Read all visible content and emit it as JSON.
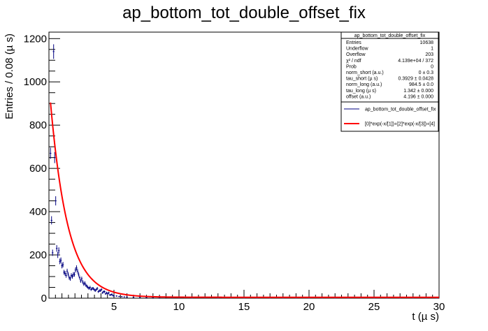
{
  "chart_data": {
    "type": "histogram-with-fit",
    "title": "ap_bottom_tot_double_offset_fix",
    "xlabel": "t (µ s)",
    "ylabel": "Entries / 0.08 (µ s)",
    "xlim": [
      0,
      30
    ],
    "ylim": [
      0,
      1230
    ],
    "xticks": [
      5,
      10,
      15,
      20,
      25,
      30
    ],
    "yticks": [
      0,
      200,
      400,
      600,
      800,
      1000,
      1200
    ],
    "series": [
      {
        "name": "ap_bottom_tot_double_offset_fix",
        "kind": "data-points",
        "color": "#000080",
        "x": [
          0.12,
          0.2,
          0.28,
          0.36,
          0.44,
          0.52,
          0.6,
          0.68,
          0.76,
          0.84,
          0.92,
          1.0,
          1.08,
          1.16,
          1.24,
          1.32,
          1.4,
          1.48,
          1.56,
          1.64,
          1.72,
          1.8,
          1.88,
          1.96,
          2.04,
          2.12,
          2.2,
          2.28,
          2.36,
          2.44,
          2.52,
          2.6,
          2.68,
          2.76,
          2.84,
          2.92,
          3.0,
          3.08,
          3.16,
          3.24,
          3.32,
          3.4,
          3.48,
          3.56,
          3.64,
          3.72,
          3.8,
          3.88,
          3.96,
          4.04,
          4.12,
          4.2,
          4.28,
          4.36,
          4.44,
          4.52,
          4.6,
          4.68,
          4.76,
          4.84,
          4.92,
          5.0,
          5.2,
          5.4,
          5.6,
          5.8,
          6.0,
          6.5,
          7.0,
          7.5,
          8.0,
          8.5,
          9.0,
          9.5,
          10.0,
          11.0,
          12.0,
          13.0,
          14.0,
          15.0,
          16.0,
          17.0,
          18.0,
          19.0,
          20.0,
          21.0,
          22.0,
          23.0,
          24.0,
          25.0,
          26.0,
          27.0,
          28.0,
          29.0,
          29.8
        ],
        "y": [
          670,
          360,
          210,
          1140,
          650,
          450,
          230,
          200,
          220,
          170,
          175,
          150,
          155,
          120,
          115,
          105,
          125,
          110,
          95,
          90,
          105,
          100,
          110,
          110,
          130,
          140,
          125,
          110,
          95,
          80,
          90,
          75,
          65,
          70,
          60,
          55,
          50,
          45,
          50,
          40,
          45,
          45,
          40,
          35,
          40,
          45,
          30,
          35,
          35,
          40,
          25,
          30,
          30,
          20,
          25,
          20,
          25,
          15,
          15,
          18,
          12,
          10,
          10,
          8,
          7,
          6,
          5,
          4,
          4,
          3,
          3,
          2,
          3,
          2,
          2,
          1,
          2,
          1,
          1,
          1,
          1,
          1,
          1,
          1,
          1,
          1,
          1,
          1,
          1,
          1,
          1,
          1,
          1,
          1,
          1
        ]
      },
      {
        "name": "[0]*exp(-x/[1])+[2]*exp(-x/[3])+[4]",
        "kind": "fit-curve",
        "color": "#ff0000"
      }
    ],
    "stats": {
      "title": "ap_bottom_tot_double_offset_fix",
      "rows": [
        [
          "Entries",
          "10638"
        ],
        [
          "Underflow",
          "1"
        ],
        [
          "Overflow",
          "203"
        ],
        [
          "χ² / ndf",
          "4.139e+04 / 372"
        ],
        [
          "Prob",
          "0"
        ],
        [
          "norm_short (a.u.)",
          "0 ± 0.3"
        ],
        [
          "tau_short (µ s)",
          "0.3929 ± 0.0428"
        ],
        [
          "norm_long (a.u.)",
          "984.5 ± 0.0"
        ],
        [
          "tau_long (µ s)",
          "1.342 ± 0.000"
        ],
        [
          "offset (a.u.)",
          "4.196 ± 0.000"
        ]
      ]
    },
    "fit_params": {
      "norm_short": 0,
      "tau_short": 0.3929,
      "norm_long": 984.5,
      "tau_long": 1.342,
      "offset": 4.196
    },
    "legend": [
      {
        "label": "ap_bottom_tot_double_offset_fix",
        "color": "#000080",
        "style": "line"
      },
      {
        "label": "[0]*exp(-x/[1])+[2]*exp(-x/[3])+[4]",
        "color": "#ff0000",
        "style": "thick-line"
      }
    ],
    "grid": false,
    "legend_position": "top-right"
  }
}
